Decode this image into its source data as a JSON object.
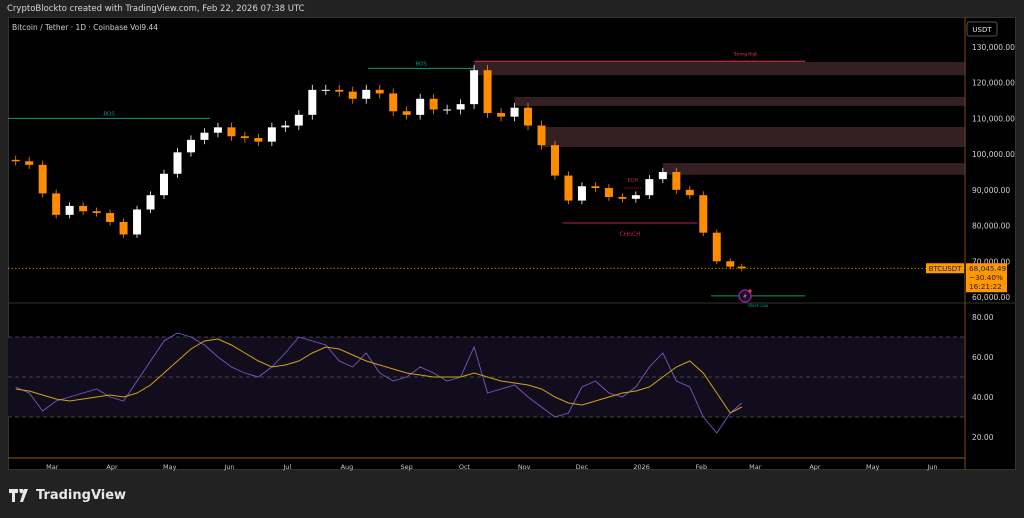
{
  "header": {
    "credit": "CryptoBlockto created with TradingView.com, Feb 22, 2026 07:38 UTC",
    "legend": "Bitcoin / Tether · 1D · Coinbase  Vol9.44",
    "currency": "USDT"
  },
  "footer": {
    "brand": "TradingView",
    "logo_icon": "tradingview-logo-icon"
  },
  "price_label": {
    "symbol": "BTCUSDT",
    "price": "68,045.49",
    "change": "−30.40%",
    "countdown": "16:21:22"
  },
  "colors": {
    "up": "#ffffff",
    "down": "#ff8c00",
    "rsi": "#7e57c2",
    "rsi_ma": "#d4a017",
    "bos": "#089981",
    "choch": "#c2185b",
    "zone": "#3a2226",
    "strong_high": "#f23645",
    "accent": "#ff9800"
  },
  "annotations": {
    "bos_1": "BOS",
    "bos_2": "BOS",
    "strong_high": "Strong High",
    "eqh": "EQH",
    "choch": "CHoCH",
    "weak_low": "Weak Low",
    "alert_icon": "lightning-icon"
  },
  "chart_data": [
    {
      "type": "candlestick",
      "title": "",
      "ylabel": "USDT",
      "ylim": [
        60000,
        130000
      ],
      "yticks": [
        "60,000.00",
        "70,000.00",
        "80,000.00",
        "90,000.00",
        "100,000.00",
        "110,000.00",
        "120,000.00",
        "130,000.00"
      ],
      "grid": false,
      "dates": [
        "2025-02-10",
        "2025-02-17",
        "2025-02-24",
        "2025-03-03",
        "2025-03-10",
        "2025-03-17",
        "2025-03-24",
        "2025-03-31",
        "2025-04-07",
        "2025-04-14",
        "2025-04-21",
        "2025-04-28",
        "2025-05-05",
        "2025-05-12",
        "2025-05-19",
        "2025-05-26",
        "2025-06-02",
        "2025-06-09",
        "2025-06-16",
        "2025-06-23",
        "2025-06-30",
        "2025-07-07",
        "2025-07-14",
        "2025-07-21",
        "2025-07-28",
        "2025-08-04",
        "2025-08-11",
        "2025-08-18",
        "2025-08-25",
        "2025-09-01",
        "2025-09-08",
        "2025-09-15",
        "2025-09-22",
        "2025-09-29",
        "2025-10-06",
        "2025-10-13",
        "2025-10-20",
        "2025-10-27",
        "2025-11-03",
        "2025-11-10",
        "2025-11-17",
        "2025-11-24",
        "2025-12-01",
        "2025-12-08",
        "2025-12-15",
        "2025-12-22",
        "2025-12-29",
        "2026-01-05",
        "2026-01-12",
        "2026-01-19",
        "2026-01-26",
        "2026-02-02",
        "2026-02-09",
        "2026-02-16",
        "2026-02-22"
      ],
      "close": [
        98000,
        97000,
        89000,
        83000,
        85500,
        84000,
        83500,
        81000,
        77500,
        84500,
        88500,
        94500,
        100500,
        104000,
        106000,
        107500,
        105000,
        104500,
        103500,
        107500,
        108000,
        111000,
        118000,
        118000,
        117500,
        115500,
        118000,
        117000,
        112000,
        111000,
        115500,
        112500,
        112500,
        114000,
        123500,
        111500,
        110500,
        113000,
        108000,
        102500,
        94000,
        87000,
        91000,
        90500,
        88000,
        87500,
        88500,
        93000,
        95000,
        90000,
        88500,
        78000,
        70000,
        68500,
        68045
      ],
      "zones": [
        {
          "from": "2025-10-06",
          "top": 125800,
          "bottom": 122100
        },
        {
          "from": "2025-10-27",
          "top": 116000,
          "bottom": 113500
        },
        {
          "from": "2025-11-10",
          "top": 107600,
          "bottom": 102000
        },
        {
          "from": "2026-01-12",
          "top": 97500,
          "bottom": 94200
        }
      ],
      "levels": [
        {
          "label_key": "bos_1",
          "price": 110000,
          "from": "2025-02-06",
          "to": "2025-05-22",
          "kind": "bos"
        },
        {
          "label_key": "bos_2",
          "price": 124000,
          "from": "2025-08-12",
          "to": "2025-10-06",
          "kind": "bos"
        },
        {
          "label_key": "strong_high",
          "price": 126000,
          "from": "2025-10-06",
          "to": "2026-03-27",
          "kind": "strong_high"
        },
        {
          "label_key": "choch",
          "price": 80700,
          "from": "2025-11-21",
          "to": "2026-01-30",
          "kind": "choch"
        },
        {
          "label_key": "eqh",
          "price": 90500,
          "from": "2025-12-23",
          "to": "2026-01-01",
          "kind": "eqh"
        },
        {
          "label_key": "weak_low",
          "price": 60300,
          "from": "2026-02-06",
          "to": "2026-03-27",
          "kind": "weak_low"
        }
      ],
      "last_price": 68045.49
    },
    {
      "type": "line",
      "title": "",
      "ylim": [
        15,
        85
      ],
      "yticks": [
        "20.00",
        "40.00",
        "60.00",
        "80.00"
      ],
      "bands": [
        30,
        50,
        70
      ],
      "series": [
        {
          "values": [
            45,
            42,
            33,
            38,
            40,
            42,
            44,
            40,
            38,
            48,
            58,
            68,
            72,
            70,
            66,
            60,
            55,
            52,
            50,
            55,
            62,
            70,
            68,
            66,
            58,
            55,
            62,
            52,
            48,
            50,
            55,
            52,
            48,
            50,
            65,
            42,
            44,
            46,
            40,
            35,
            30,
            32,
            45,
            48,
            42,
            40,
            45,
            55,
            62,
            48,
            45,
            30,
            22,
            32,
            37
          ]
        },
        {
          "values": [
            44,
            43,
            41,
            39,
            38,
            39,
            40,
            41,
            40,
            42,
            46,
            52,
            58,
            64,
            68,
            69,
            66,
            62,
            58,
            55,
            56,
            58,
            62,
            65,
            64,
            61,
            58,
            56,
            54,
            52,
            51,
            50,
            50,
            50,
            52,
            50,
            48,
            47,
            46,
            44,
            40,
            37,
            36,
            38,
            40,
            42,
            43,
            45,
            50,
            55,
            58,
            52,
            42,
            32,
            35
          ]
        }
      ]
    }
  ],
  "time_axis": {
    "labels": [
      "Mar",
      "Apr",
      "May",
      "Jun",
      "Jul",
      "Aug",
      "Sep",
      "Oct",
      "Nov",
      "Dec",
      "2026",
      "Feb",
      "Mar",
      "Apr",
      "May",
      "Jun"
    ],
    "dates": [
      "2025-03-01",
      "2025-04-01",
      "2025-05-01",
      "2025-06-01",
      "2025-07-01",
      "2025-08-01",
      "2025-09-01",
      "2025-10-01",
      "2025-11-01",
      "2025-12-01",
      "2026-01-01",
      "2026-02-01",
      "2026-03-01",
      "2026-04-01",
      "2026-05-01",
      "2026-06-01"
    ]
  }
}
